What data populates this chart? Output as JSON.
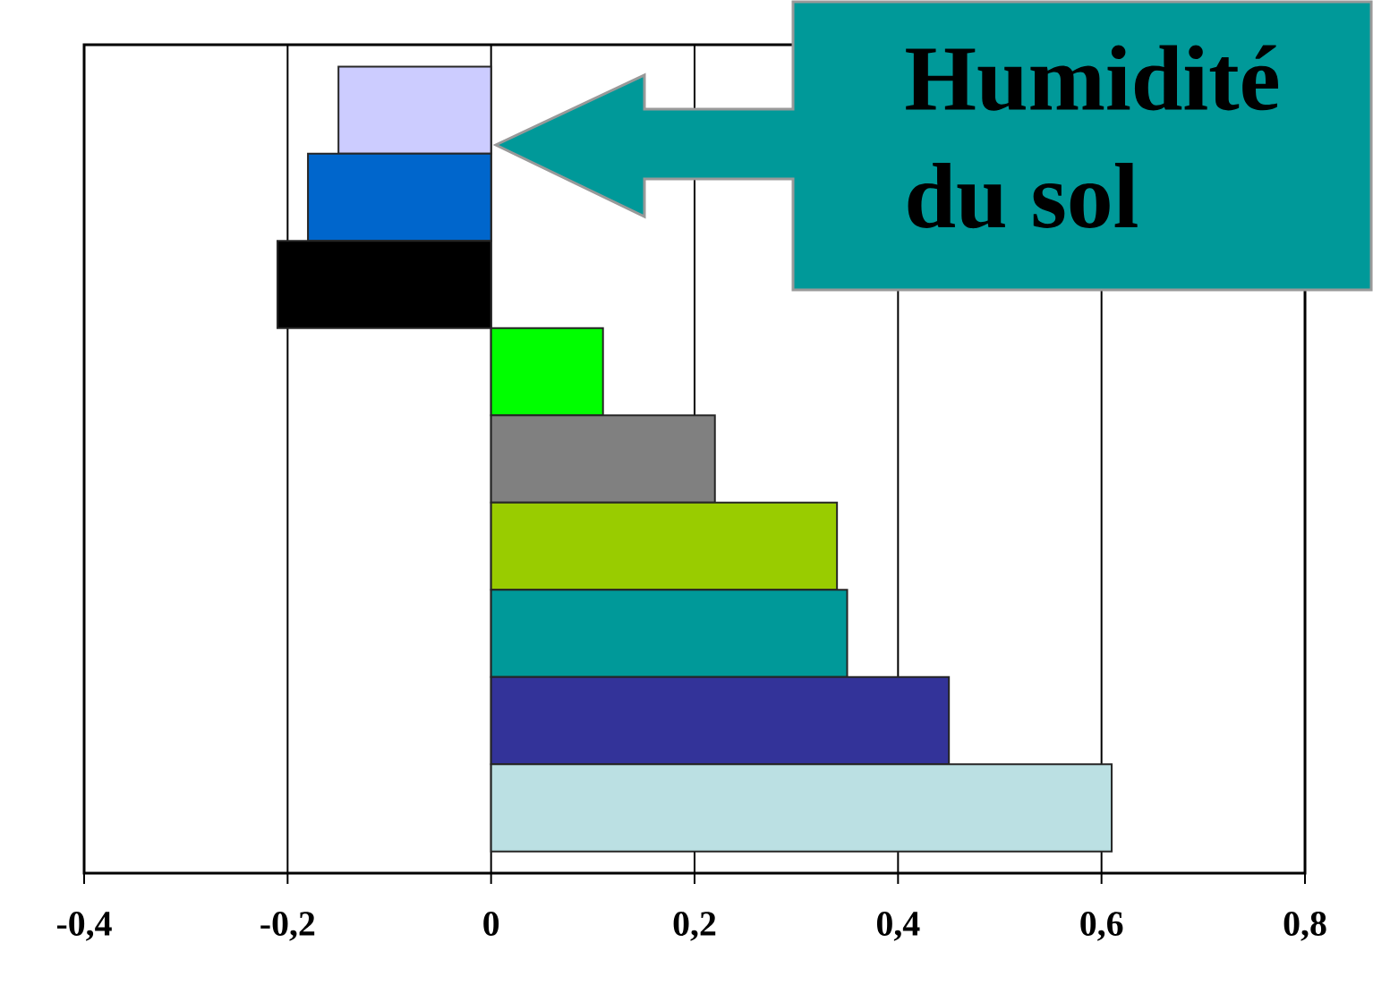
{
  "chart_data": {
    "type": "bar",
    "orientation": "horizontal",
    "categories": [
      null,
      null,
      null,
      null,
      null,
      null,
      null,
      null,
      null
    ],
    "values": [
      -0.15,
      -0.18,
      -0.21,
      0.11,
      0.22,
      0.34,
      0.35,
      0.45,
      0.61
    ],
    "colors": [
      "#ccccff",
      "#0066cc",
      "#000000",
      "#00ff00",
      "#808080",
      "#99cc00",
      "#009999",
      "#333399",
      "#bbe0e3"
    ],
    "xlim": [
      -0.4,
      0.8
    ],
    "xticks": [
      {
        "value": -0.4,
        "label": "-0,4"
      },
      {
        "value": -0.2,
        "label": "-0,2"
      },
      0,
      {
        "value": 0.2,
        "label": "0,2"
      },
      {
        "value": 0.4,
        "label": "0,4"
      },
      {
        "value": 0.6,
        "label": "0,6"
      },
      {
        "value": 0.8,
        "label": "0,8"
      }
    ],
    "grid": "x",
    "annotations": [
      "Humidité du sol"
    ]
  }
}
